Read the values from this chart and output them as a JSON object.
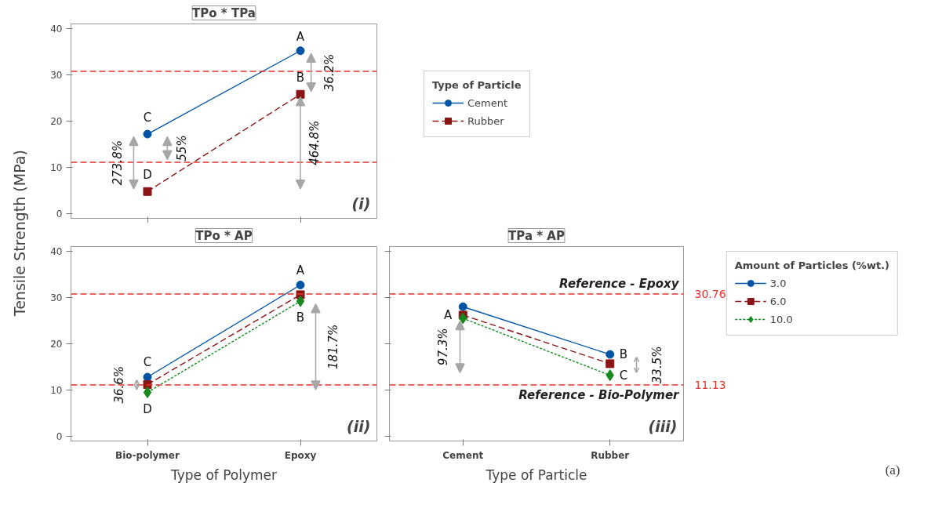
{
  "chart_data": [
    {
      "type": "line",
      "title": "TPo * TPa",
      "ylabel": "Tensile Strength (MPa)",
      "categories": [
        "Bio-polymer",
        "Epoxy"
      ],
      "ylim": [
        -1,
        41
      ],
      "yticks": [
        0,
        10,
        20,
        30,
        40
      ],
      "tick_labels": "y",
      "grid": false,
      "legend": "right",
      "legend_title": "Type of Particle",
      "series": [
        {
          "name": "Cement",
          "color": "#0054a6",
          "values": [
            17.2,
            35.2
          ],
          "marker": "circle",
          "line_style": "solid"
        },
        {
          "name": "Rubber",
          "color": "#8b1414",
          "values": [
            4.8,
            25.8
          ],
          "marker": "square",
          "line_style": "dashed"
        }
      ],
      "ref_lines": [
        {
          "axis": "y",
          "value": 30.76,
          "color": "#e8312c",
          "line_style": "dashed"
        },
        {
          "axis": "y",
          "value": 11.13,
          "color": "#e8312c",
          "line_style": "dashed"
        }
      ],
      "annotations": [
        {
          "text": "A",
          "x": "Epoxy",
          "y": 35.2
        },
        {
          "text": "B",
          "x": "Epoxy",
          "y": 25.8
        },
        {
          "text": "C",
          "x": "Bio-polymer",
          "y": 17.2
        },
        {
          "text": "D",
          "x": "Bio-polymer",
          "y": 4.8
        },
        "273.8%",
        "55%",
        "36.2%",
        "464.8%",
        "(i)"
      ]
    },
    {
      "type": "line",
      "title": "TPo * AP",
      "xlabel": "Type of Polymer",
      "categories": [
        "Bio-polymer",
        "Epoxy"
      ],
      "ylim": [
        -1,
        41
      ],
      "yticks": [
        0,
        10,
        20,
        30,
        40
      ],
      "grid": false,
      "series": [
        {
          "color": "#0054a6",
          "values": [
            12.8,
            32.7
          ],
          "marker": "circle",
          "line_style": "solid"
        },
        {
          "color": "#8b1414",
          "values": [
            11.2,
            30.6
          ],
          "marker": "square",
          "line_style": "dashed"
        },
        {
          "color": "#15891e",
          "values": [
            9.5,
            29.2
          ],
          "marker": "diamond",
          "line_style": "dotted"
        }
      ],
      "ref_lines": [
        {
          "axis": "y",
          "value": 30.76,
          "color": "#e8312c",
          "line_style": "dashed"
        },
        {
          "axis": "y",
          "value": 11.13,
          "color": "#e8312c",
          "line_style": "dashed"
        }
      ],
      "annotations": [
        {
          "text": "A",
          "x": "Epoxy",
          "y": 32.7
        },
        {
          "text": "B",
          "x": "Epoxy",
          "y": 29.2
        },
        {
          "text": "C",
          "x": "Bio-polymer",
          "y": 12.8
        },
        {
          "text": "D",
          "x": "Bio-polymer",
          "y": 9.5
        },
        "36.6%",
        "181.7%",
        "(ii)"
      ]
    },
    {
      "type": "line",
      "title": "TPa * AP",
      "xlabel": "Type of Particle",
      "categories": [
        "Cement",
        "Rubber"
      ],
      "ylim": [
        -1,
        41
      ],
      "yticks": [
        0,
        10,
        20,
        30,
        40
      ],
      "tick_labels": "x",
      "grid": false,
      "legend": "right",
      "legend_title": "Amount of Particles (%wt.)",
      "series": [
        {
          "name": "3.0",
          "color": "#0054a6",
          "values": [
            28.0,
            17.7
          ],
          "marker": "circle",
          "line_style": "solid"
        },
        {
          "name": "6.0",
          "color": "#8b1414",
          "values": [
            26.2,
            15.7
          ],
          "marker": "square",
          "line_style": "dashed"
        },
        {
          "name": "10.0",
          "color": "#15891e",
          "values": [
            25.5,
            13.2
          ],
          "marker": "diamond",
          "line_style": "dotted"
        }
      ],
      "ref_lines": [
        {
          "axis": "y",
          "value": 30.76,
          "label": "Reference - Epoxy",
          "color": "#e8312c",
          "line_style": "dashed"
        },
        {
          "axis": "y",
          "value": 11.13,
          "label": "Reference - Bio-Polymer",
          "color": "#e8312c",
          "line_style": "dashed"
        }
      ],
      "annotations": [
        {
          "text": "A",
          "x": "Cement",
          "y": 26.2
        },
        {
          "text": "B",
          "x": "Rubber",
          "y": 17.7
        },
        {
          "text": "C",
          "x": "Rubber",
          "y": 13.2
        },
        "97.3%",
        "33.5%",
        "(iii)",
        "(a)",
        "30.76",
        "11.13"
      ]
    }
  ]
}
